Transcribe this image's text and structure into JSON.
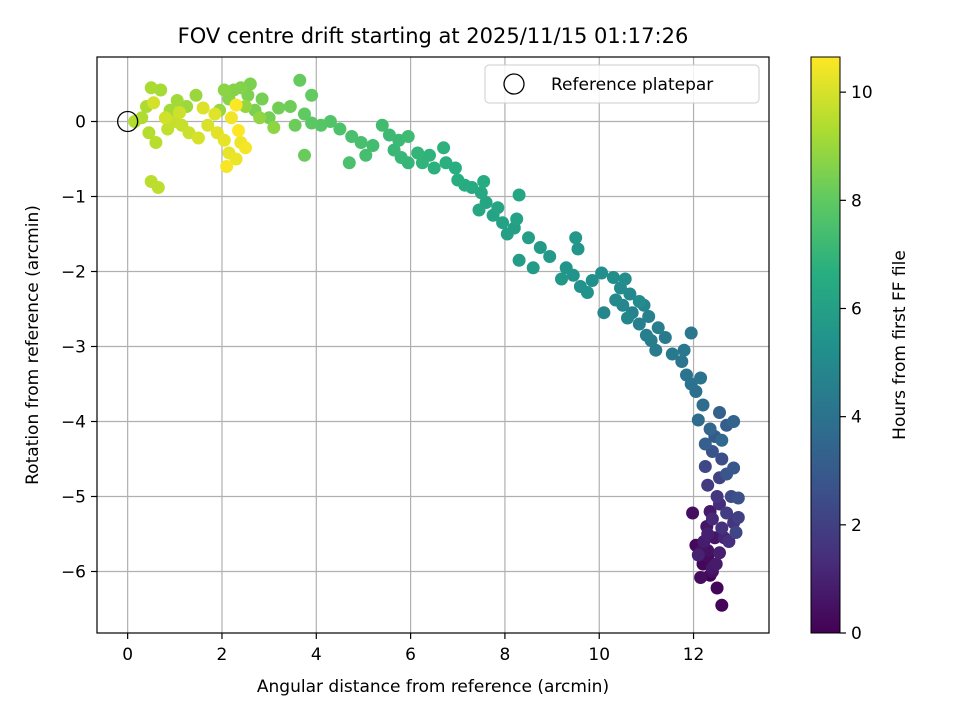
{
  "chart_data": {
    "type": "scatter",
    "title": "FOV centre drift starting at 2025/11/15 01:17:26",
    "xlabel": "Angular distance from reference (arcmin)",
    "ylabel": "Rotation from reference (arcmin)",
    "xlim": [
      -0.65,
      13.6
    ],
    "ylim": [
      -6.82,
      0.86
    ],
    "xticks": [
      0,
      2,
      4,
      6,
      8,
      10,
      12
    ],
    "yticks": [
      0,
      -1,
      -2,
      -3,
      -4,
      -5,
      -6
    ],
    "xtick_labels": [
      "0",
      "2",
      "4",
      "6",
      "8",
      "10",
      "12"
    ],
    "ytick_labels": [
      "0",
      "−1",
      "−2",
      "−3",
      "−4",
      "−5",
      "−6"
    ],
    "grid": true,
    "legend": {
      "position": "top-right",
      "entries": [
        "Reference platepar"
      ]
    },
    "reference_point": {
      "x": 0,
      "y": 0,
      "label": "Reference platepar"
    },
    "colorbar": {
      "label": "Hours from first FF file",
      "colormap": "viridis",
      "range": [
        0,
        10.65
      ],
      "ticks": [
        0,
        2,
        4,
        6,
        8,
        10
      ],
      "tick_labels": [
        "0",
        "2",
        "4",
        "6",
        "8",
        "10"
      ]
    },
    "points": [
      [
        12.35,
        -6.05,
        0.05
      ],
      [
        12.6,
        -6.45,
        0.1
      ],
      [
        12.5,
        -6.22,
        0.15
      ],
      [
        12.2,
        -5.9,
        0.2
      ],
      [
        12.05,
        -5.65,
        0.25
      ],
      [
        12.3,
        -5.8,
        0.3
      ],
      [
        12.15,
        -6.08,
        0.35
      ],
      [
        11.98,
        -5.22,
        0.4
      ],
      [
        12.4,
        -6.0,
        0.45
      ],
      [
        12.3,
        -5.72,
        0.5
      ],
      [
        12.18,
        -5.72,
        0.55
      ],
      [
        12.45,
        -5.55,
        0.6
      ],
      [
        12.28,
        -5.4,
        0.65
      ],
      [
        12.4,
        -5.95,
        0.7
      ],
      [
        12.35,
        -5.2,
        0.75
      ],
      [
        12.48,
        -5.9,
        0.8
      ],
      [
        12.22,
        -5.6,
        0.85
      ],
      [
        12.55,
        -5.75,
        0.9
      ],
      [
        12.3,
        -5.5,
        0.95
      ],
      [
        12.1,
        -5.78,
        1.0
      ],
      [
        12.65,
        -5.55,
        1.1
      ],
      [
        12.4,
        -5.3,
        1.2
      ],
      [
        12.55,
        -5.1,
        1.3
      ],
      [
        12.75,
        -5.6,
        1.4
      ],
      [
        12.6,
        -5.42,
        1.5
      ],
      [
        12.85,
        -5.35,
        1.6
      ],
      [
        12.5,
        -5.0,
        1.7
      ],
      [
        12.3,
        -4.85,
        1.8
      ],
      [
        12.7,
        -5.22,
        1.9
      ],
      [
        12.95,
        -5.28,
        2.0
      ],
      [
        12.55,
        -4.75,
        2.1
      ],
      [
        12.9,
        -5.48,
        2.2
      ],
      [
        12.25,
        -4.6,
        2.3
      ],
      [
        12.8,
        -5.0,
        2.4
      ],
      [
        12.6,
        -4.5,
        2.5
      ],
      [
        12.95,
        -5.02,
        2.6
      ],
      [
        12.4,
        -4.4,
        2.7
      ],
      [
        12.7,
        -4.7,
        2.8
      ],
      [
        12.85,
        -4.62,
        2.9
      ],
      [
        12.45,
        -4.2,
        3.0
      ],
      [
        12.7,
        -4.05,
        3.1
      ],
      [
        12.25,
        -4.3,
        3.2
      ],
      [
        12.55,
        -3.88,
        3.3
      ],
      [
        12.85,
        -4.0,
        3.4
      ],
      [
        12.35,
        -4.1,
        3.5
      ],
      [
        12.6,
        -4.25,
        3.6
      ],
      [
        12.1,
        -3.98,
        3.7
      ],
      [
        12.2,
        -3.78,
        3.8
      ],
      [
        12.05,
        -3.6,
        3.9
      ],
      [
        11.95,
        -3.5,
        4.0
      ],
      [
        12.15,
        -3.42,
        4.05
      ],
      [
        11.85,
        -3.38,
        4.1
      ],
      [
        11.75,
        -3.2,
        4.15
      ],
      [
        11.95,
        -2.82,
        4.2
      ],
      [
        11.8,
        -3.05,
        4.25
      ],
      [
        11.55,
        -3.1,
        4.3
      ],
      [
        11.4,
        -2.88,
        4.35
      ],
      [
        11.2,
        -3.05,
        4.4
      ],
      [
        11.1,
        -2.92,
        4.45
      ],
      [
        11.25,
        -2.75,
        4.5
      ],
      [
        11.0,
        -2.85,
        4.55
      ],
      [
        10.85,
        -2.7,
        4.6
      ],
      [
        11.05,
        -2.6,
        4.65
      ],
      [
        10.7,
        -2.55,
        4.7
      ],
      [
        10.95,
        -2.45,
        4.75
      ],
      [
        10.6,
        -2.62,
        4.8
      ],
      [
        10.5,
        -2.45,
        4.85
      ],
      [
        10.1,
        -2.55,
        4.9
      ],
      [
        10.35,
        -2.38,
        4.95
      ],
      [
        10.65,
        -2.3,
        5.0
      ],
      [
        10.45,
        -2.22,
        5.05
      ],
      [
        10.85,
        -2.4,
        5.1
      ],
      [
        10.55,
        -2.1,
        5.15
      ],
      [
        10.3,
        -2.08,
        5.2
      ],
      [
        10.05,
        -2.02,
        5.25
      ],
      [
        9.85,
        -2.12,
        5.3
      ],
      [
        9.6,
        -2.2,
        5.35
      ],
      [
        9.75,
        -2.28,
        5.4
      ],
      [
        9.45,
        -2.05,
        5.45
      ],
      [
        9.3,
        -1.95,
        5.5
      ],
      [
        9.55,
        -1.7,
        5.55
      ],
      [
        9.5,
        -1.55,
        5.6
      ],
      [
        9.2,
        -2.1,
        5.65
      ],
      [
        8.95,
        -1.8,
        5.7
      ],
      [
        8.75,
        -1.68,
        5.75
      ],
      [
        8.6,
        -1.95,
        5.8
      ],
      [
        8.3,
        -1.85,
        5.85
      ],
      [
        8.5,
        -1.55,
        5.9
      ],
      [
        8.2,
        -1.42,
        5.95
      ],
      [
        8.05,
        -1.5,
        6.0
      ],
      [
        8.25,
        -1.3,
        6.05
      ],
      [
        7.95,
        -1.35,
        6.1
      ],
      [
        7.75,
        -1.25,
        6.15
      ],
      [
        7.85,
        -1.15,
        6.2
      ],
      [
        7.6,
        -1.08,
        6.25
      ],
      [
        8.3,
        -0.98,
        6.3
      ],
      [
        7.45,
        -1.18,
        6.35
      ],
      [
        7.5,
        -0.95,
        6.4
      ],
      [
        7.3,
        -0.88,
        6.45
      ],
      [
        7.55,
        -0.8,
        6.5
      ],
      [
        7.15,
        -0.85,
        6.55
      ],
      [
        7.0,
        -0.78,
        6.6
      ],
      [
        6.95,
        -0.62,
        6.65
      ],
      [
        6.75,
        -0.55,
        6.7
      ],
      [
        6.5,
        -0.62,
        6.75
      ],
      [
        6.7,
        -0.35,
        6.8
      ],
      [
        6.4,
        -0.45,
        6.85
      ],
      [
        6.25,
        -0.55,
        6.9
      ],
      [
        6.15,
        -0.42,
        6.95
      ],
      [
        5.95,
        -0.55,
        7.0
      ],
      [
        5.8,
        -0.48,
        7.05
      ],
      [
        5.65,
        -0.38,
        7.1
      ],
      [
        5.75,
        -0.25,
        7.15
      ],
      [
        5.55,
        -0.18,
        7.2
      ],
      [
        5.95,
        -0.2,
        7.25
      ],
      [
        5.4,
        -0.05,
        7.3
      ],
      [
        5.2,
        -0.32,
        7.35
      ],
      [
        5.05,
        -0.45,
        7.4
      ],
      [
        4.95,
        -0.28,
        7.45
      ],
      [
        4.75,
        -0.2,
        7.5
      ],
      [
        4.7,
        -0.55,
        7.55
      ],
      [
        4.5,
        -0.1,
        7.6
      ],
      [
        4.3,
        0.0,
        7.7
      ],
      [
        4.1,
        -0.05,
        7.8
      ],
      [
        3.9,
        -0.02,
        7.9
      ],
      [
        3.75,
        0.1,
        8.0
      ],
      [
        3.9,
        0.35,
        8.05
      ],
      [
        3.65,
        0.55,
        8.1
      ],
      [
        3.75,
        -0.45,
        8.15
      ],
      [
        3.55,
        -0.05,
        8.2
      ],
      [
        3.45,
        0.2,
        8.25
      ],
      [
        3.2,
        0.18,
        8.3
      ],
      [
        3.0,
        0.05,
        8.35
      ],
      [
        2.85,
        0.3,
        8.4
      ],
      [
        2.7,
        0.15,
        8.45
      ],
      [
        2.6,
        0.5,
        8.5
      ],
      [
        2.55,
        0.35,
        8.55
      ],
      [
        2.4,
        0.45,
        8.6
      ],
      [
        2.25,
        0.42,
        8.65
      ],
      [
        2.15,
        0.3,
        8.7
      ],
      [
        2.05,
        0.42,
        8.75
      ],
      [
        3.1,
        -0.08,
        8.8
      ],
      [
        2.8,
        0.05,
        8.85
      ],
      [
        2.5,
        0.2,
        8.9
      ],
      [
        1.95,
        0.15,
        8.95
      ],
      [
        1.45,
        0.35,
        9.0
      ],
      [
        1.25,
        0.2,
        9.05
      ],
      [
        1.05,
        0.28,
        9.1
      ],
      [
        0.9,
        0.15,
        9.15
      ],
      [
        0.7,
        0.42,
        9.2
      ],
      [
        0.5,
        0.45,
        9.25
      ],
      [
        0.4,
        0.2,
        9.3
      ],
      [
        0.3,
        0.05,
        9.35
      ],
      [
        0.15,
        0.0,
        9.4
      ],
      [
        0.45,
        -0.15,
        9.45
      ],
      [
        0.6,
        -0.28,
        9.5
      ],
      [
        0.5,
        -0.8,
        9.55
      ],
      [
        0.65,
        -0.88,
        9.6
      ],
      [
        0.85,
        -0.1,
        9.65
      ],
      [
        1.0,
        0.0,
        9.7
      ],
      [
        1.15,
        -0.05,
        9.75
      ],
      [
        1.3,
        -0.15,
        9.8
      ],
      [
        1.1,
        0.12,
        9.85
      ],
      [
        0.8,
        0.05,
        9.9
      ],
      [
        0.55,
        0.25,
        9.95
      ],
      [
        1.5,
        -0.22,
        10.0
      ],
      [
        1.7,
        -0.05,
        10.05
      ],
      [
        1.6,
        0.18,
        10.1
      ],
      [
        1.85,
        0.1,
        10.15
      ],
      [
        1.9,
        -0.15,
        10.2
      ],
      [
        2.05,
        -0.25,
        10.25
      ],
      [
        2.15,
        -0.42,
        10.3
      ],
      [
        2.3,
        -0.5,
        10.35
      ],
      [
        2.4,
        -0.28,
        10.4
      ],
      [
        2.2,
        0.05,
        10.45
      ],
      [
        2.5,
        -0.35,
        10.5
      ],
      [
        2.1,
        -0.6,
        10.55
      ],
      [
        2.3,
        0.22,
        10.6
      ],
      [
        2.35,
        -0.12,
        10.65
      ]
    ]
  }
}
